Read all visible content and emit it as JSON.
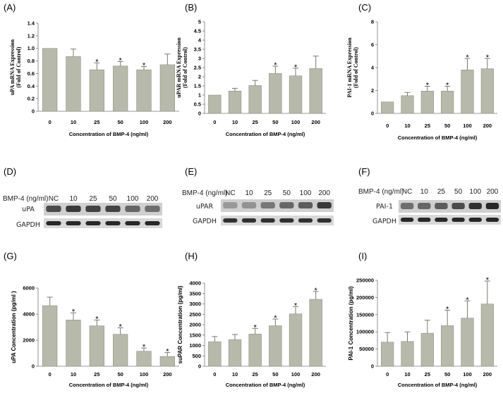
{
  "chart_data": [
    {
      "type": "bar",
      "panel": "(A)",
      "categories": [
        "0",
        "10",
        "25",
        "50",
        "100",
        "200"
      ],
      "values": [
        1.0,
        0.87,
        0.66,
        0.72,
        0.66,
        0.74
      ],
      "errors": [
        0.0,
        0.12,
        0.11,
        0.07,
        0.05,
        0.17
      ],
      "significant": [
        false,
        false,
        true,
        true,
        true,
        false
      ],
      "ylabel_lines": [
        "uPA mRNA Expression",
        "(Fold of Control)"
      ],
      "xlabel": "Concentration of BMP-4 (ng/ml)",
      "ylim": [
        0,
        1.4
      ],
      "yticks": [
        "0",
        "0.2",
        "0.4",
        "0.6",
        "0.8",
        "1.0",
        "1.2",
        "1.4"
      ]
    },
    {
      "type": "bar",
      "panel": "(B)",
      "categories": [
        "0",
        "10",
        "25",
        "50",
        "100",
        "200"
      ],
      "values": [
        1.0,
        1.22,
        1.52,
        2.18,
        2.05,
        2.45
      ],
      "errors": [
        0.0,
        0.15,
        0.28,
        0.4,
        0.42,
        0.68
      ],
      "significant": [
        false,
        false,
        false,
        true,
        true,
        false
      ],
      "ylabel_lines": [
        "uPAR mRNA Expression",
        "(Fold of Control)"
      ],
      "xlabel": "Concentration of BMP-4 (ng/ml)",
      "ylim": [
        0,
        5
      ],
      "yticks": [
        "0",
        "0.5",
        "1",
        "1.5",
        "2",
        "2.5",
        "3",
        "3.5",
        "4",
        "4.5",
        "5"
      ]
    },
    {
      "type": "bar",
      "panel": "(C)",
      "categories": [
        "0",
        "10",
        "25",
        "50",
        "100",
        "200"
      ],
      "values": [
        1.0,
        1.55,
        1.95,
        1.95,
        3.8,
        3.9
      ],
      "errors": [
        0.0,
        0.28,
        0.42,
        0.42,
        1.0,
        0.9
      ],
      "significant": [
        false,
        false,
        true,
        true,
        true,
        true
      ],
      "ylabel_lines": [
        "PAI-1 mRNA Expression",
        "(Fold of Control)"
      ],
      "xlabel": "Concentration of BMP-4 (ng/ml)",
      "ylim": [
        0,
        8
      ],
      "yticks": [
        "0",
        "2",
        "4",
        "6",
        "8"
      ]
    },
    {
      "type": "bar",
      "panel": "(G)",
      "categories": [
        "0",
        "10",
        "25",
        "50",
        "100",
        "200"
      ],
      "values": [
        4650,
        3550,
        3100,
        2450,
        1150,
        750
      ],
      "errors": [
        650,
        550,
        450,
        500,
        250,
        300
      ],
      "significant": [
        false,
        true,
        true,
        true,
        true,
        true
      ],
      "ylabel_lines": [
        "uPA Concentration (pg/ml )"
      ],
      "xlabel": "Concentration of BMP-4 (ng/ml)",
      "ylim": [
        0,
        6000
      ],
      "yticks": [
        "0",
        "2000",
        "4000",
        "6000"
      ]
    },
    {
      "type": "bar",
      "panel": "(H)",
      "categories": [
        "0",
        "10",
        "25",
        "50",
        "100",
        "200"
      ],
      "values": [
        1180,
        1280,
        1550,
        1950,
        2520,
        3220
      ],
      "errors": [
        250,
        250,
        270,
        320,
        350,
        380
      ],
      "significant": [
        false,
        false,
        true,
        true,
        true,
        true
      ],
      "ylabel_lines": [
        "suPAR Concentration (pg/ml)"
      ],
      "xlabel": "Concentration of BMP-4 (ng/ml)",
      "ylim": [
        0,
        4000
      ],
      "yticks": [
        "0",
        "500",
        "1000",
        "1500",
        "2000",
        "2500",
        "3000",
        "3500",
        "4000"
      ]
    },
    {
      "type": "bar",
      "panel": "(I)",
      "categories": [
        "0",
        "10",
        "25",
        "50",
        "100",
        "200"
      ],
      "values": [
        70000,
        72000,
        96000,
        118000,
        140000,
        181000
      ],
      "errors": [
        28000,
        28000,
        38000,
        45000,
        50000,
        67000
      ],
      "significant": [
        false,
        false,
        false,
        true,
        true,
        true
      ],
      "ylabel_lines": [
        "PAI-1 Concentration (pg/ml)"
      ],
      "xlabel": "Concentration of BMP-4 (ng/ml)",
      "ylim": [
        0,
        250000
      ],
      "yticks": [
        "0",
        "50000",
        "100000",
        "150000",
        "200000",
        "250000"
      ]
    }
  ],
  "blots": [
    {
      "panel": "(D)",
      "header": "BMP-4 (ng/ml)",
      "lanes": [
        "NC",
        "10",
        "25",
        "50",
        "100",
        "200"
      ],
      "band_labels": [
        "uPA",
        "GAPDH"
      ]
    },
    {
      "panel": "(E)",
      "header": "BMP-4 (ng/ml)",
      "lanes": [
        "NC",
        "10",
        "25",
        "50",
        "100",
        "200"
      ],
      "band_labels": [
        "uPAR",
        "GAPDH"
      ]
    },
    {
      "panel": "(F)",
      "header": "BMP-4 (ng/ml)",
      "lanes": [
        "NC",
        "10",
        "25",
        "50",
        "100",
        "200"
      ],
      "band_labels": [
        "PAI-1",
        "GAPDH"
      ]
    }
  ],
  "colors": {
    "bar": "#b7b9ab",
    "bar_stroke": "#8f9184",
    "band": "#1f1f1f"
  },
  "star_symbol": "*"
}
